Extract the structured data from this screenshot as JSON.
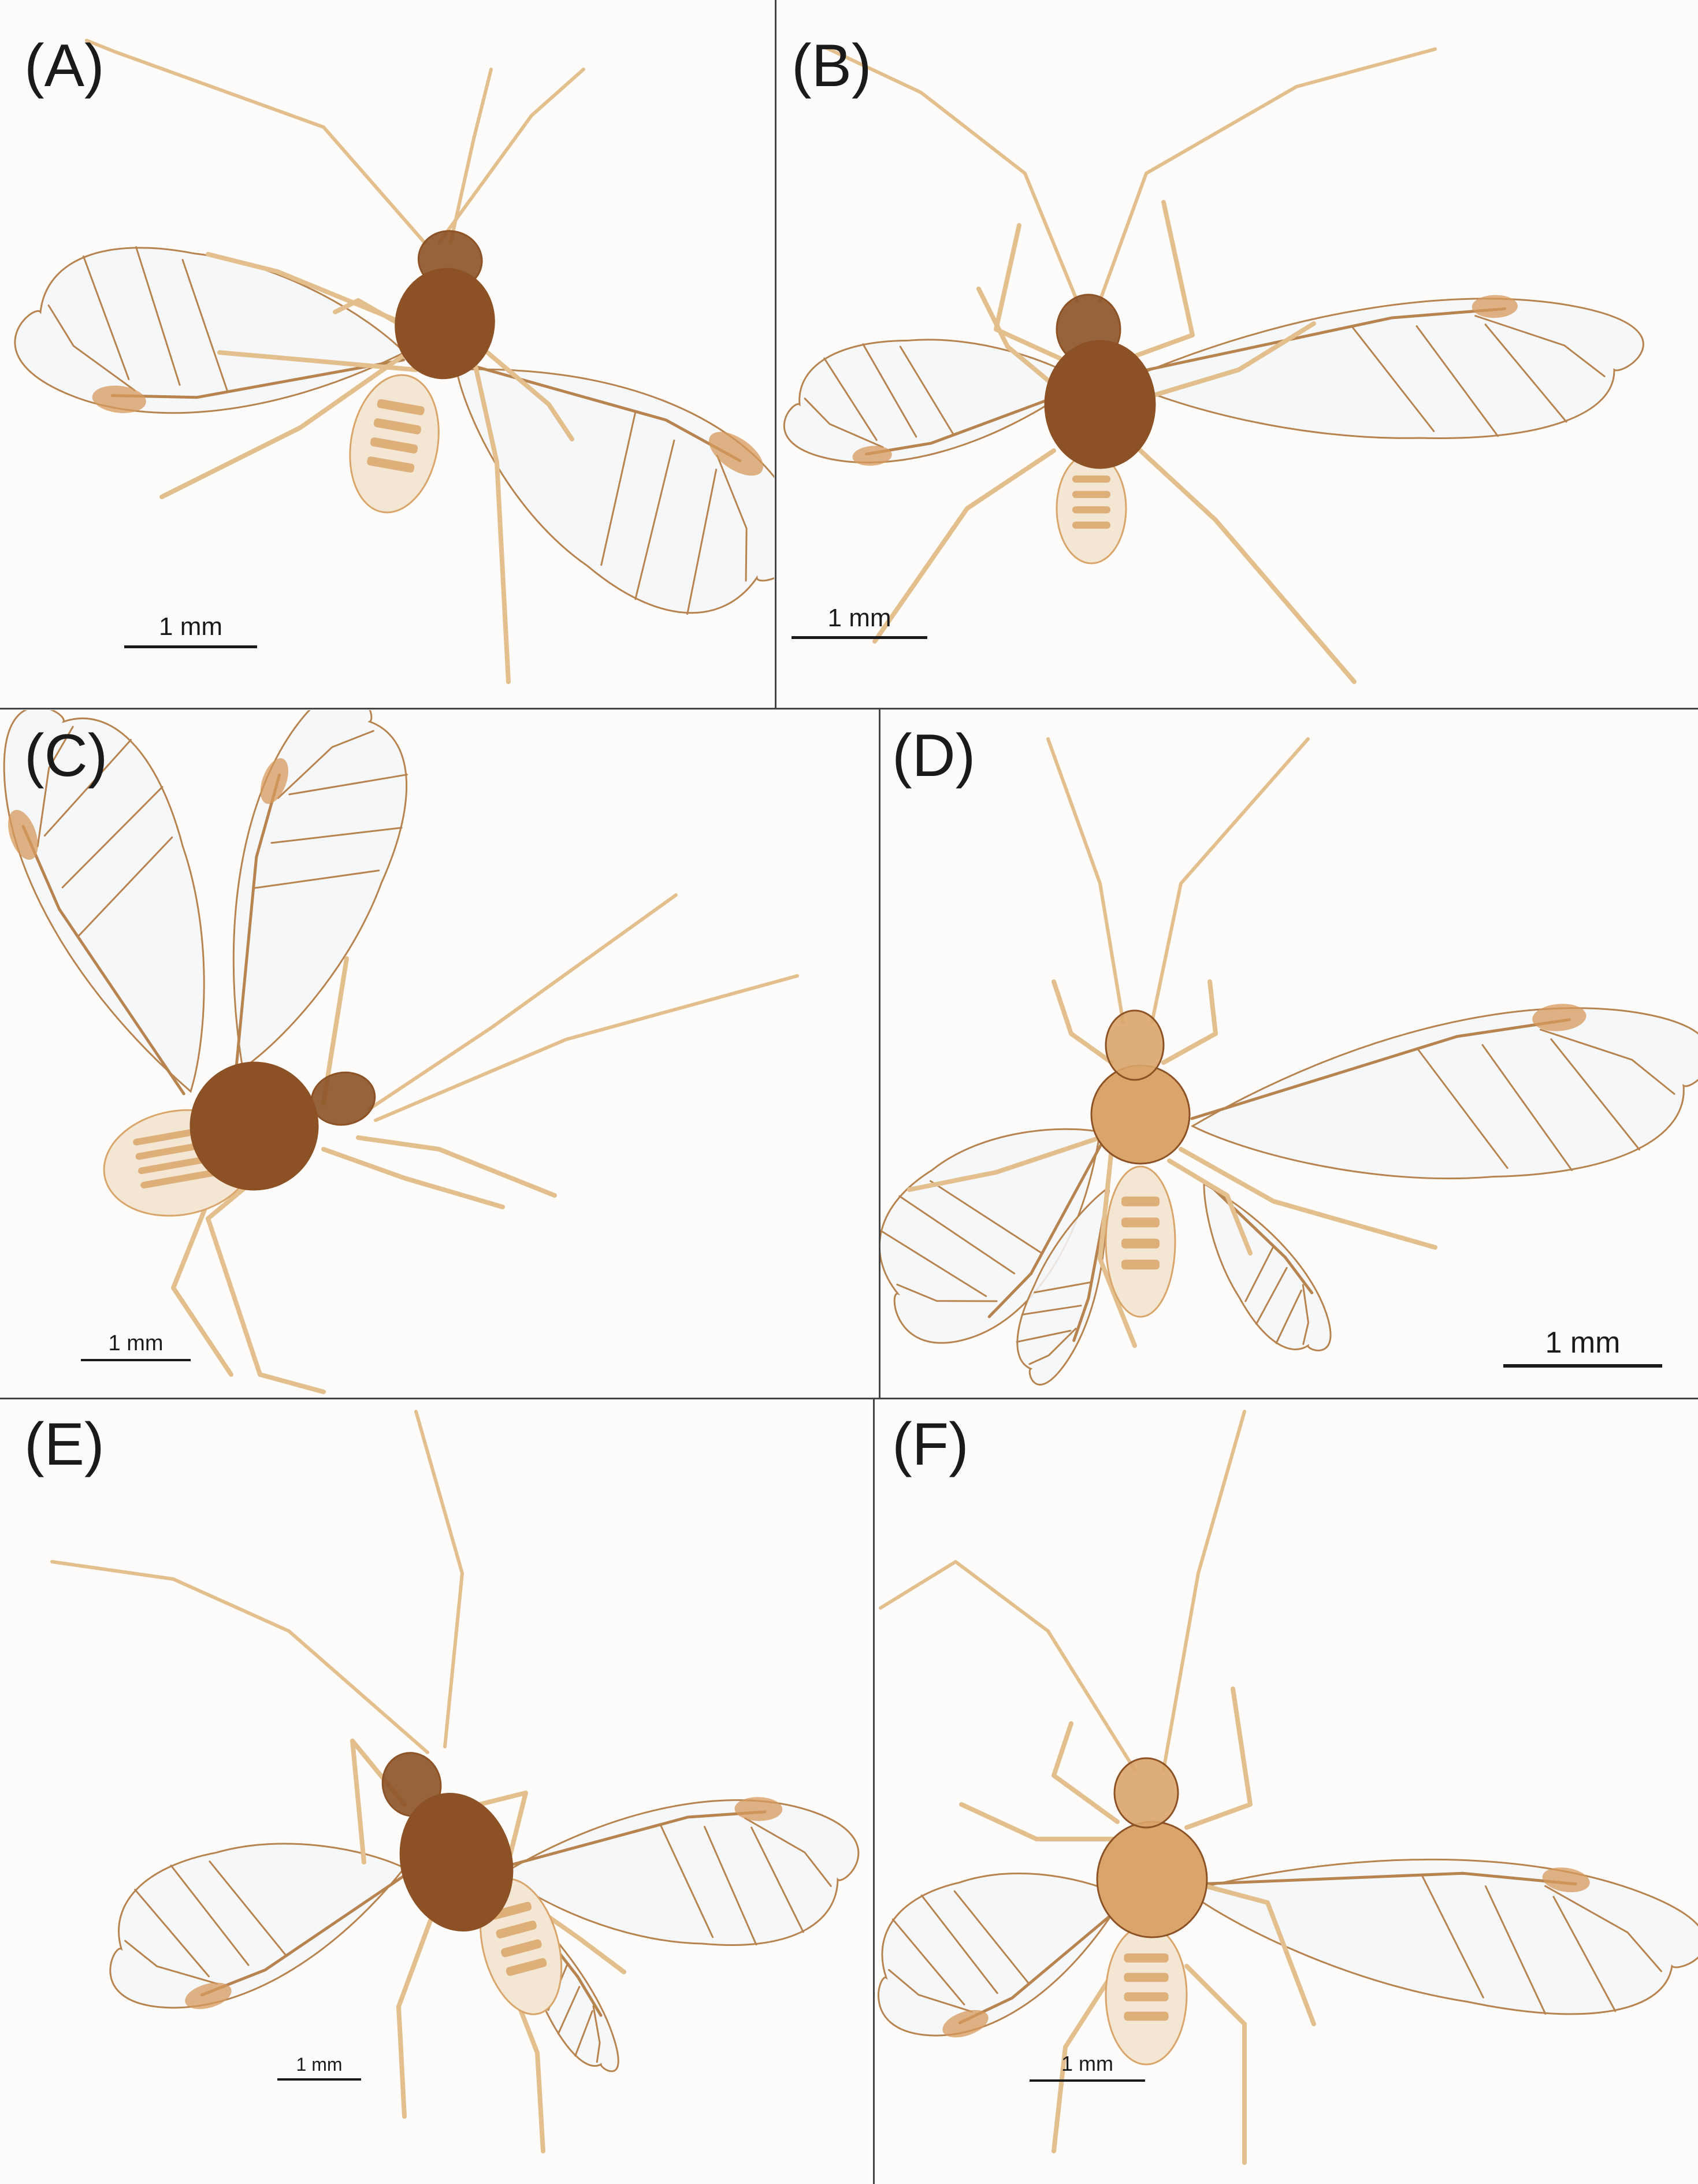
{
  "figure": {
    "panels": [
      {
        "id": "A",
        "label": "(A)",
        "scale_text": "1 mm"
      },
      {
        "id": "B",
        "label": "(B)",
        "scale_text": "1 mm"
      },
      {
        "id": "C",
        "label": "(C)",
        "scale_text": "1 mm"
      },
      {
        "id": "D",
        "label": "(D)",
        "scale_text": "1 mm"
      },
      {
        "id": "E",
        "label": "(E)",
        "scale_text": "1 mm"
      },
      {
        "id": "F",
        "label": "(F)",
        "scale_text": "1 mm"
      }
    ]
  },
  "colors": {
    "background": "#fdfcfa",
    "wing_fill": "#f4f6f8",
    "wing_vein": "#b7834f",
    "pterostigma": "#d59a5c",
    "body_dark": "#8c5226",
    "body_light": "#d9a56a",
    "appendage": "#e2bf8c",
    "text": "#1a1a1a",
    "divider": "#444444"
  },
  "icons": [
    "aphid-specimen",
    "scale-bar"
  ]
}
